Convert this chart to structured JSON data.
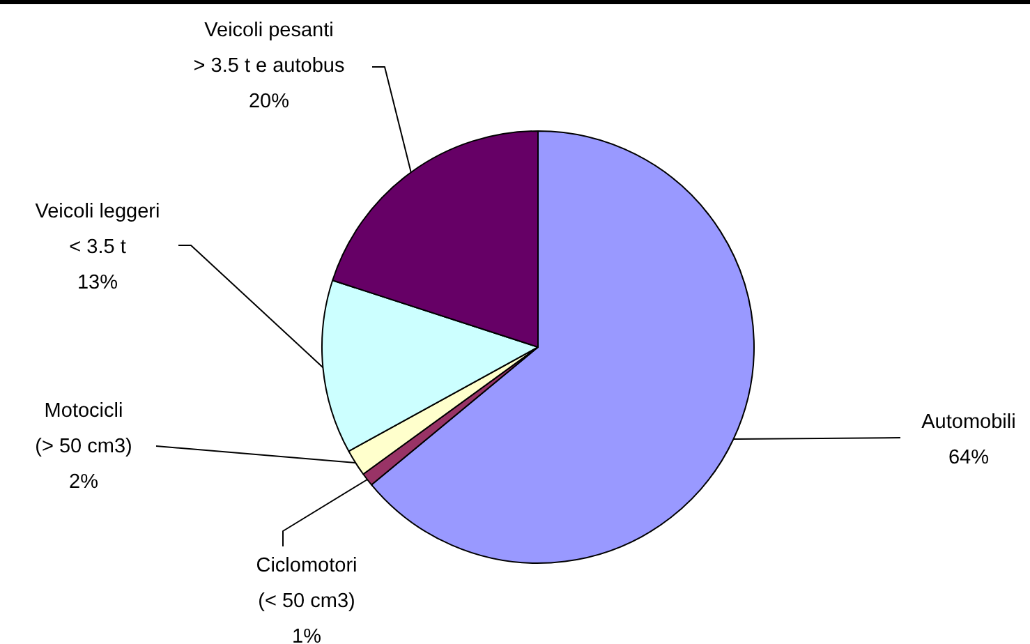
{
  "chart_data": {
    "type": "pie",
    "categories": [
      "Automobili",
      "Ciclomotori\n(< 50 cm3)",
      "Motocicli\n(> 50 cm3)",
      "Veicoli leggeri\n< 3.5 t",
      "Veicoli pesanti\n> 3.5 t e autobus"
    ],
    "values": [
      64,
      1,
      2,
      13,
      20
    ],
    "colors": [
      "#9999ff",
      "#993366",
      "#ffffcc",
      "#ccffff",
      "#660066"
    ],
    "value_labels": [
      "64%",
      "1%",
      "2%",
      "13%",
      "20%"
    ]
  }
}
